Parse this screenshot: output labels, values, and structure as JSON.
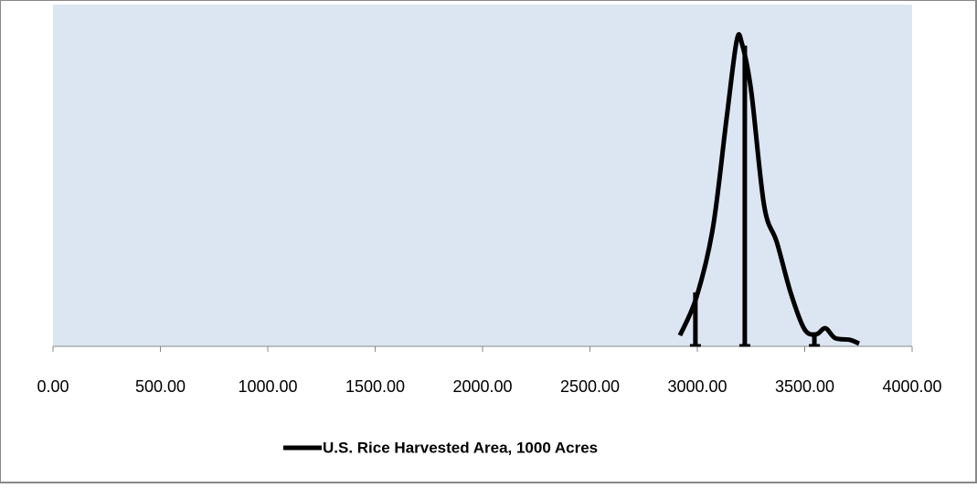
{
  "chart_data": {
    "type": "line",
    "legend": "bottom",
    "xlim": [
      0,
      4000
    ],
    "xticks": [
      {
        "value": 0,
        "label": "0.00"
      },
      {
        "value": 500,
        "label": "500.00"
      },
      {
        "value": 1000,
        "label": "1000.00"
      },
      {
        "value": 1500,
        "label": "1500.00"
      },
      {
        "value": 2000,
        "label": "2000.00"
      },
      {
        "value": 2500,
        "label": "2500.00"
      },
      {
        "value": 3000,
        "label": "3000.00"
      },
      {
        "value": 3500,
        "label": "3500.00"
      },
      {
        "value": 4000,
        "label": "4000.00"
      }
    ],
    "ylim": [
      0,
      1
    ],
    "series": [
      {
        "name": "U.S. Rice Harvested Area, 1000 Acres",
        "color": "#000000",
        "x": [
          2919,
          2996,
          3072,
          3136,
          3183,
          3208,
          3251,
          3311,
          3370,
          3434,
          3498,
          3553,
          3596,
          3642,
          3711,
          3753
        ],
        "values": [
          0.032,
          0.144,
          0.345,
          0.666,
          0.893,
          0.885,
          0.746,
          0.412,
          0.305,
          0.158,
          0.051,
          0.035,
          0.053,
          0.024,
          0.019,
          0.008
        ]
      }
    ],
    "vlines": {
      "x": [
        2991,
        3221,
        3545
      ],
      "values": [
        0.158,
        0.88,
        0.029
      ]
    }
  }
}
